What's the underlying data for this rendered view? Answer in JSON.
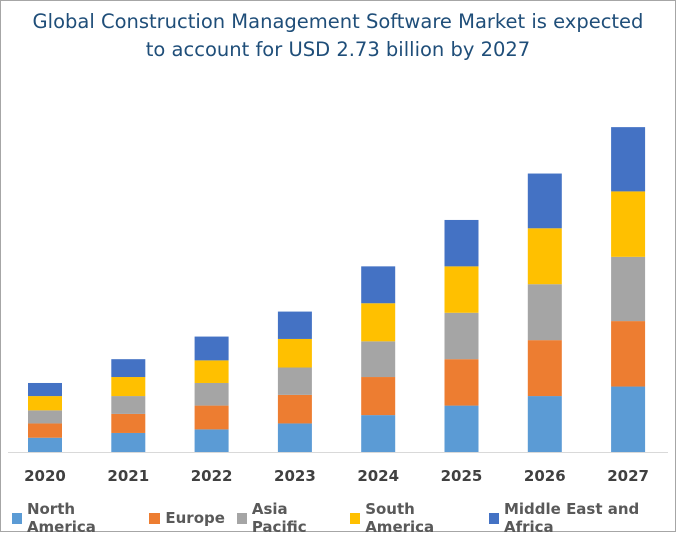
{
  "chart_data": {
    "type": "bar",
    "stacked": true,
    "title": "Global Construction Management Software Market is expected to account for USD 2.73 billion by 2027",
    "title_lines": [
      "Global Construction Management Software Market is expected",
      "to account for USD 2.73 billion by 2027"
    ],
    "xlabel": "",
    "ylabel": "",
    "unit": "USD billion",
    "grid": false,
    "legend_position": "bottom",
    "ylim": [
      0,
      2.8
    ],
    "categories": [
      "2020",
      "2021",
      "2022",
      "2023",
      "2024",
      "2025",
      "2026",
      "2027"
    ],
    "series": [
      {
        "name": "North America",
        "color": "#5b9bd5",
        "values": [
          0.12,
          0.16,
          0.19,
          0.24,
          0.31,
          0.39,
          0.47,
          0.55
        ]
      },
      {
        "name": "Europe",
        "color": "#ed7d31",
        "values": [
          0.12,
          0.16,
          0.2,
          0.24,
          0.32,
          0.39,
          0.47,
          0.55
        ]
      },
      {
        "name": "Asia Pacific",
        "color": "#a5a5a5",
        "values": [
          0.11,
          0.15,
          0.19,
          0.23,
          0.3,
          0.39,
          0.47,
          0.54
        ]
      },
      {
        "name": "South America",
        "color": "#ffc000",
        "values": [
          0.12,
          0.16,
          0.19,
          0.24,
          0.32,
          0.39,
          0.47,
          0.55
        ]
      },
      {
        "name": "Middle East and Africa",
        "color": "#4472c4",
        "values": [
          0.11,
          0.15,
          0.2,
          0.23,
          0.31,
          0.39,
          0.46,
          0.54
        ]
      }
    ]
  }
}
